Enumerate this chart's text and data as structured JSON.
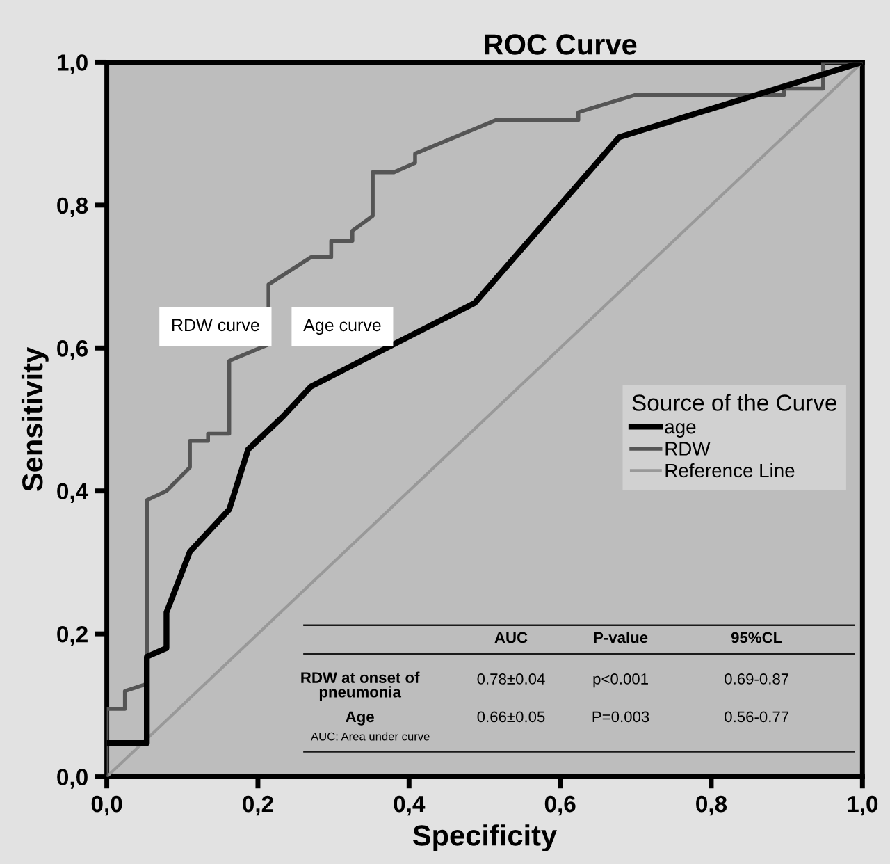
{
  "chart_data": {
    "type": "line",
    "title": "ROC Curve",
    "xlabel": "Specificity",
    "ylabel": "Sensitivity",
    "legend_title": "Source of the Curve",
    "legend": "right",
    "grid": false,
    "series": [
      {
        "name": "age",
        "color": "#000000",
        "x": [
          0,
          0.053,
          0.053,
          0.079,
          0.079,
          0.11,
          0.162,
          0.187,
          0.233,
          0.27,
          0.487,
          0.678,
          1
        ],
        "values": [
          0.047,
          0.047,
          0.168,
          0.18,
          0.23,
          0.315,
          0.374,
          0.458,
          0.504,
          0.546,
          0.663,
          0.895,
          1
        ]
      },
      {
        "name": "RDW",
        "color": "#555555",
        "x": [
          0,
          0,
          0.024,
          0.024,
          0.053,
          0.053,
          0.079,
          0.11,
          0.11,
          0.134,
          0.134,
          0.162,
          0.162,
          0.214,
          0.214,
          0.27,
          0.297,
          0.297,
          0.325,
          0.325,
          0.352,
          0.352,
          0.38,
          0.408,
          0.408,
          0.515,
          0.624,
          0.624,
          0.699,
          0.896,
          0.896,
          0.948,
          0.948,
          1
        ],
        "values": [
          0,
          0.095,
          0.095,
          0.12,
          0.13,
          0.387,
          0.4,
          0.433,
          0.47,
          0.47,
          0.48,
          0.48,
          0.582,
          0.605,
          0.689,
          0.727,
          0.727,
          0.75,
          0.75,
          0.764,
          0.785,
          0.846,
          0.846,
          0.859,
          0.872,
          0.919,
          0.919,
          0.93,
          0.954,
          0.954,
          0.963,
          0.963,
          1,
          1
        ]
      },
      {
        "name": "Reference Line",
        "color": "#999999",
        "x": [
          0,
          1
        ],
        "values": [
          0,
          1
        ]
      }
    ],
    "xlim": [
      0,
      1
    ],
    "ylim": [
      0,
      1
    ],
    "xticks": [
      {
        "value": 0,
        "label": "0,0"
      },
      {
        "value": 0.2,
        "label": "0,2"
      },
      {
        "value": 0.4,
        "label": "0,4"
      },
      {
        "value": 0.6,
        "label": "0,6"
      },
      {
        "value": 0.8,
        "label": "0,8"
      },
      {
        "value": 1,
        "label": "1,0"
      }
    ],
    "yticks": [
      {
        "value": 0,
        "label": "0,0"
      },
      {
        "value": 0.2,
        "label": "0,2"
      },
      {
        "value": 0.4,
        "label": "0,4"
      },
      {
        "value": 0.6,
        "label": "0,6"
      },
      {
        "value": 0.8,
        "label": "0,8"
      },
      {
        "value": 1,
        "label": "1,0"
      }
    ],
    "annotations": [
      "RDW curve",
      "Age curve",
      "AUC",
      "P-value",
      "95%CL",
      "RDW at onset of\npneumonia",
      "0.78±0.04",
      "p<0.001",
      "0.69-0.87",
      "Age",
      "0.66±0.05",
      "P=0.003",
      "0.56-0.77",
      "AUC: Area under curve"
    ]
  }
}
